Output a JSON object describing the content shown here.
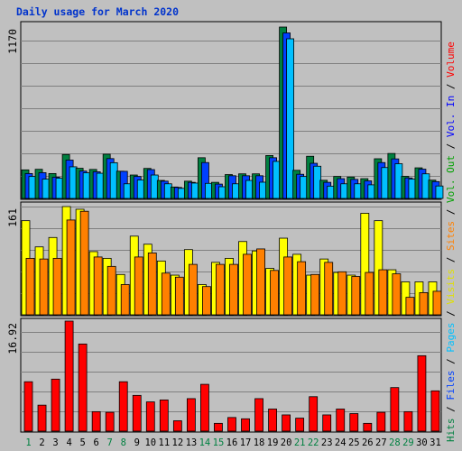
{
  "title": "Daily usage for March 2020",
  "chart_data": [
    {
      "type": "bar",
      "panel": "hits-files-pages",
      "ytick": "1170",
      "ylim": [
        0,
        1170
      ],
      "categories": [
        "1",
        "2",
        "3",
        "4",
        "5",
        "6",
        "7",
        "8",
        "9",
        "10",
        "11",
        "12",
        "13",
        "14",
        "15",
        "16",
        "17",
        "18",
        "19",
        "20",
        "21",
        "22",
        "23",
        "24",
        "25",
        "26",
        "27",
        "28",
        "29",
        "30",
        "31"
      ],
      "series": [
        {
          "name": "Hits",
          "color": "#008040",
          "values": [
            195,
            199,
            170,
            300,
            206,
            198,
            302,
            186,
            160,
            205,
            123,
            78,
            118,
            278,
            110,
            163,
            168,
            168,
            293,
            1170,
            192,
            288,
            124,
            150,
            146,
            135,
            271,
            307,
            151,
            209,
            125
          ]
        },
        {
          "name": "Files",
          "color": "#0040ff",
          "values": [
            170,
            176,
            145,
            262,
            187,
            182,
            272,
            185,
            150,
            197,
            118,
            75,
            110,
            245,
            98,
            155,
            155,
            155,
            278,
            1130,
            165,
            240,
            110,
            135,
            130,
            120,
            245,
            270,
            140,
            200,
            115
          ]
        },
        {
          "name": "Pages",
          "color": "#00c0ff",
          "values": [
            150,
            132,
            138,
            216,
            175,
            172,
            244,
            100,
            126,
            160,
            100,
            69,
            105,
            103,
            80,
            100,
            123,
            111,
            253,
            1090,
            150,
            220,
            84,
            100,
            100,
            93,
            211,
            237,
            132,
            168,
            85
          ]
        }
      ]
    },
    {
      "type": "bar",
      "panel": "visits-sites",
      "ytick": "161",
      "ylim": [
        0,
        161
      ],
      "categories": [
        "1",
        "2",
        "3",
        "4",
        "5",
        "6",
        "7",
        "8",
        "9",
        "10",
        "11",
        "12",
        "13",
        "14",
        "15",
        "16",
        "17",
        "18",
        "19",
        "20",
        "21",
        "22",
        "23",
        "24",
        "25",
        "26",
        "27",
        "28",
        "29",
        "30",
        "31"
      ],
      "series": [
        {
          "name": "Visits",
          "color": "#ffff00",
          "values": [
            140,
            101,
            115,
            161,
            157,
            94,
            84,
            60,
            117,
            105,
            80,
            59,
            97,
            45,
            78,
            84,
            109,
            95,
            69,
            114,
            90,
            59,
            83,
            63,
            59,
            151,
            140,
            67,
            49,
            49,
            49
          ]
        },
        {
          "name": "Sites",
          "color": "#ff8000",
          "values": [
            84,
            83,
            84,
            141,
            154,
            86,
            72,
            45,
            86,
            92,
            62,
            56,
            75,
            42,
            75,
            75,
            90,
            98,
            66,
            86,
            79,
            60,
            78,
            64,
            57,
            63,
            67,
            61,
            26,
            33,
            35
          ]
        }
      ]
    },
    {
      "type": "bar",
      "panel": "volume",
      "ytick": "16.92",
      "ylim": [
        0,
        16.92
      ],
      "categories": [
        "1",
        "2",
        "3",
        "4",
        "5",
        "6",
        "7",
        "8",
        "9",
        "10",
        "11",
        "12",
        "13",
        "14",
        "15",
        "16",
        "17",
        "18",
        "19",
        "20",
        "21",
        "22",
        "23",
        "24",
        "25",
        "26",
        "27",
        "28",
        "29",
        "30",
        "31"
      ],
      "series": [
        {
          "name": "Volume",
          "color": "#ff0000",
          "values": [
            7.6,
            4.0,
            8.0,
            16.92,
            13.4,
            3.0,
            2.9,
            7.6,
            5.5,
            4.5,
            4.8,
            1.6,
            5.0,
            7.2,
            1.2,
            2.1,
            1.9,
            5.0,
            3.4,
            2.5,
            2.0,
            5.3,
            2.5,
            3.4,
            2.7,
            1.2,
            2.9,
            6.7,
            3.0,
            11.6,
            6.2
          ]
        }
      ]
    }
  ],
  "legend_right": [
    {
      "text": "Hits",
      "color": "#008040"
    },
    {
      "text": " / ",
      "color": "#000000"
    },
    {
      "text": "Files",
      "color": "#0040ff"
    },
    {
      "text": " / ",
      "color": "#000000"
    },
    {
      "text": "Pages",
      "color": "#00c0ff"
    },
    {
      "text": " / ",
      "color": "#000000"
    },
    {
      "text": "Visits",
      "color": "#e0e000"
    },
    {
      "text": " / ",
      "color": "#000000"
    },
    {
      "text": "Sites",
      "color": "#ff8000"
    },
    {
      "text": " / ",
      "color": "#000000"
    },
    {
      "text": "Vol. Out",
      "color": "#00a000"
    },
    {
      "text": " / ",
      "color": "#000000"
    },
    {
      "text": "Vol. In",
      "color": "#0000ff"
    },
    {
      "text": " / ",
      "color": "#000000"
    },
    {
      "text": "Volume",
      "color": "#ff0000"
    }
  ],
  "weekend_days": [
    "1",
    "7",
    "8",
    "14",
    "15",
    "21",
    "22",
    "28",
    "29"
  ],
  "colors": {
    "weekday_label": "#000000",
    "weekend_label": "#008040",
    "title": "#0033cc"
  }
}
